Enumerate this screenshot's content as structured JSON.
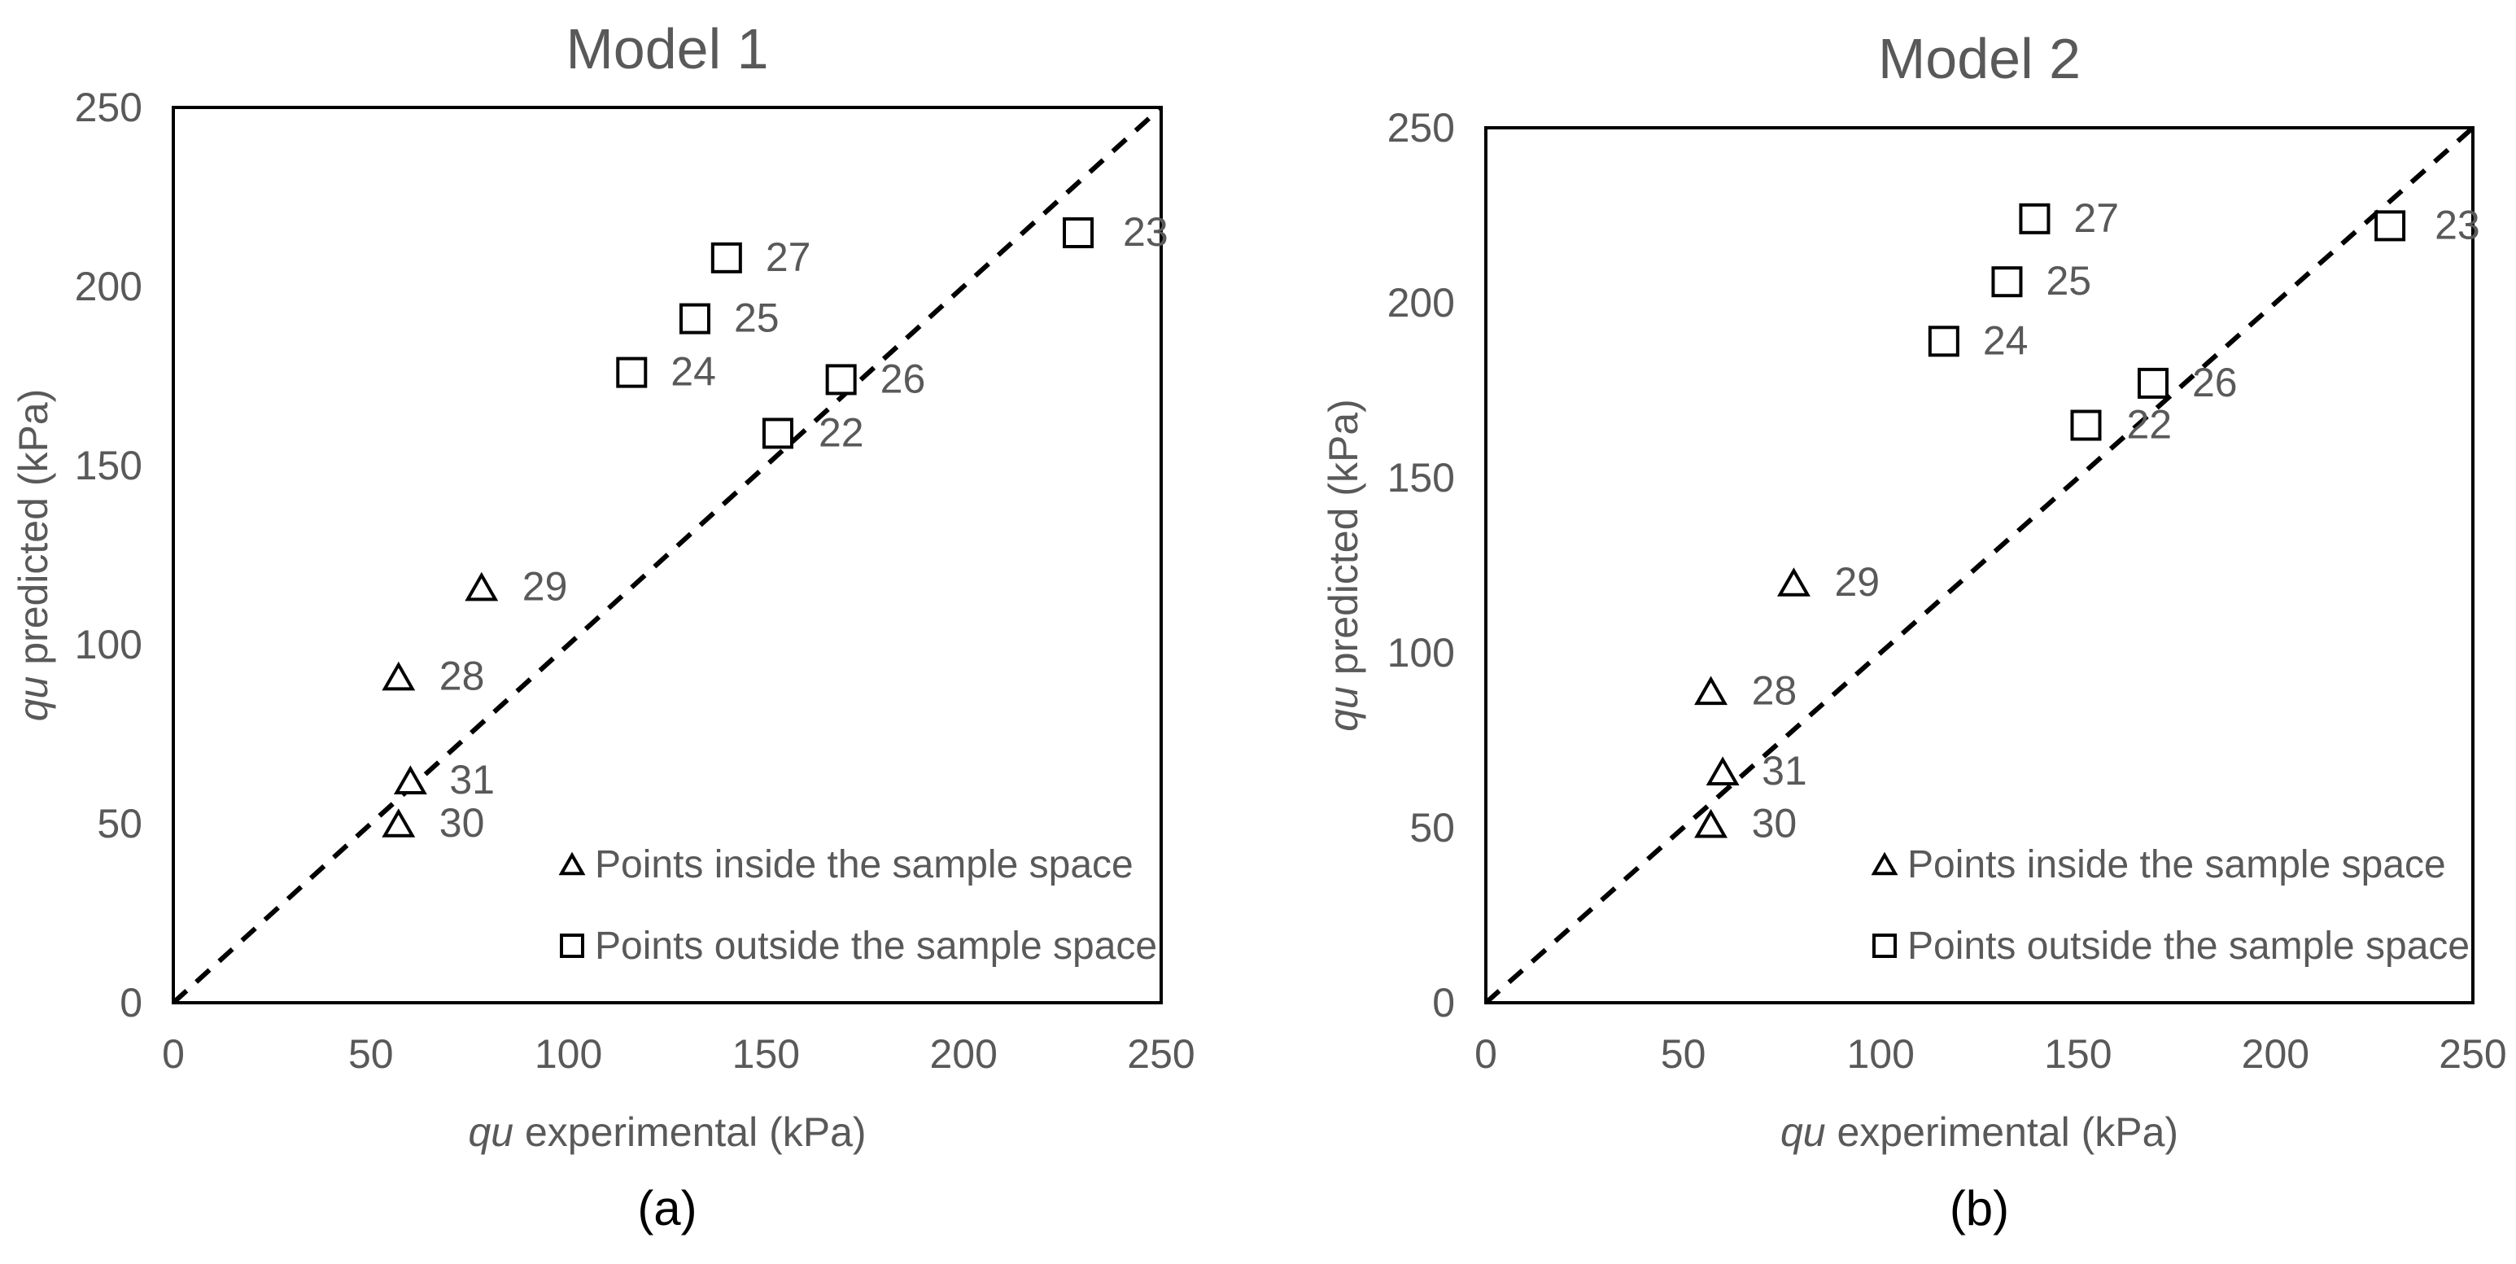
{
  "chart_data": [
    {
      "type": "scatter",
      "title": "Model 1",
      "caption": "(a)",
      "xlabel": {
        "italic": "qu",
        "rest": " experimental (kPa)"
      },
      "ylabel": {
        "italic": "qu",
        "rest": " predicted (kPa)"
      },
      "xlim": [
        0,
        250
      ],
      "ylim": [
        0,
        250
      ],
      "xticks": [
        0,
        50,
        100,
        150,
        200,
        250
      ],
      "yticks": [
        0,
        50,
        100,
        150,
        200,
        250
      ],
      "grid": false,
      "reference_line": {
        "style": "dashed",
        "from": [
          0,
          0
        ],
        "to": [
          250,
          250
        ]
      },
      "legend": {
        "position": "bottom-right",
        "entries": [
          {
            "marker": "triangle",
            "label": "Points inside the sample space"
          },
          {
            "marker": "square",
            "label": "Points outside the sample space"
          }
        ]
      },
      "series": [
        {
          "marker": "triangle",
          "points": [
            {
              "id": "28",
              "x": 57,
              "y": 91
            },
            {
              "id": "29",
              "x": 78,
              "y": 116
            },
            {
              "id": "30",
              "x": 57,
              "y": 50
            },
            {
              "id": "31",
              "x": 60,
              "y": 62
            }
          ]
        },
        {
          "marker": "square",
          "points": [
            {
              "id": "22",
              "x": 153,
              "y": 159
            },
            {
              "id": "23",
              "x": 229,
              "y": 215
            },
            {
              "id": "24",
              "x": 116,
              "y": 176
            },
            {
              "id": "25",
              "x": 132,
              "y": 191
            },
            {
              "id": "26",
              "x": 169,
              "y": 174
            },
            {
              "id": "27",
              "x": 140,
              "y": 208
            }
          ]
        }
      ]
    },
    {
      "type": "scatter",
      "title": "Model 2",
      "caption": "(b)",
      "xlabel": {
        "italic": "qu",
        "rest": " experimental (kPa)"
      },
      "ylabel": {
        "italic": "qu",
        "rest": " predicted (kPa)"
      },
      "xlim": [
        0,
        250
      ],
      "ylim": [
        0,
        250
      ],
      "xticks": [
        0,
        50,
        100,
        150,
        200,
        250
      ],
      "yticks": [
        0,
        50,
        100,
        150,
        200,
        250
      ],
      "grid": false,
      "reference_line": {
        "style": "dashed",
        "from": [
          0,
          0
        ],
        "to": [
          250,
          250
        ]
      },
      "legend": {
        "position": "bottom-right",
        "entries": [
          {
            "marker": "triangle",
            "label": "Points inside the sample space"
          },
          {
            "marker": "square",
            "label": "Points outside the sample space"
          }
        ]
      },
      "series": [
        {
          "marker": "triangle",
          "points": [
            {
              "id": "28",
              "x": 57,
              "y": 89
            },
            {
              "id": "29",
              "x": 78,
              "y": 120
            },
            {
              "id": "30",
              "x": 57,
              "y": 51
            },
            {
              "id": "31",
              "x": 60,
              "y": 66
            }
          ]
        },
        {
          "marker": "square",
          "points": [
            {
              "id": "22",
              "x": 152,
              "y": 165
            },
            {
              "id": "23",
              "x": 229,
              "y": 222
            },
            {
              "id": "24",
              "x": 116,
              "y": 189
            },
            {
              "id": "25",
              "x": 132,
              "y": 206
            },
            {
              "id": "26",
              "x": 169,
              "y": 177
            },
            {
              "id": "27",
              "x": 139,
              "y": 224
            }
          ]
        }
      ]
    }
  ]
}
